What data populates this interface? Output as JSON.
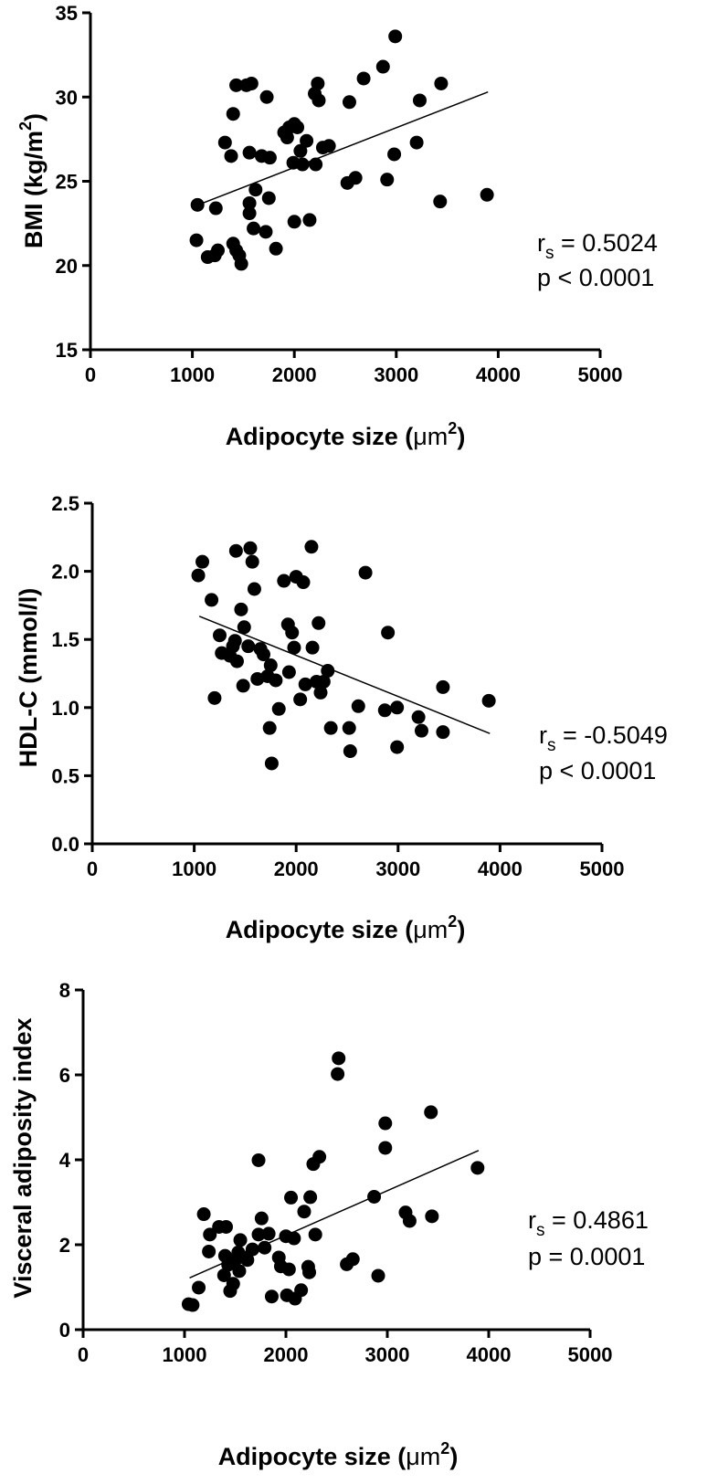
{
  "chart_data": [
    {
      "type": "scatter",
      "xlabel": "Adipocyte size (μm²)",
      "xlabel_main": "Adipocyte size (",
      "xlabel_unit": "μm",
      "xlabel_sup": "2",
      "xlabel_close": ")",
      "ylabel": "BMI (kg/m²)",
      "ylabel_main": "BMI (kg/m",
      "ylabel_sup": "2",
      "ylabel_close": ")",
      "xlim": [
        0,
        5000
      ],
      "ylim": [
        15,
        35
      ],
      "xticks": [
        0,
        1000,
        2000,
        3000,
        4000,
        5000
      ],
      "yticks": [
        15,
        20,
        25,
        30,
        35
      ],
      "xtick_labels": [
        "0",
        "1000",
        "2000",
        "3000",
        "4000",
        "5000"
      ],
      "ytick_labels": [
        "15",
        "20",
        "25",
        "30",
        "35"
      ],
      "stat_r_main": "r",
      "stat_r_sub": "s",
      "stat_r_value": " = 0.5024",
      "stat_p": "p < 0.0001",
      "fit_line": {
        "x": [
          1100,
          3900
        ],
        "y": [
          23.7,
          30.3
        ]
      },
      "points": [
        [
          1050,
          23.6
        ],
        [
          1040,
          21.5
        ],
        [
          1150,
          20.5
        ],
        [
          1220,
          20.6
        ],
        [
          1250,
          20.9
        ],
        [
          1230,
          23.4
        ],
        [
          1320,
          27.3
        ],
        [
          1380,
          26.5
        ],
        [
          1400,
          29.0
        ],
        [
          1400,
          21.3
        ],
        [
          1430,
          30.7
        ],
        [
          1430,
          20.9
        ],
        [
          1460,
          20.6
        ],
        [
          1480,
          20.1
        ],
        [
          1530,
          30.7
        ],
        [
          1560,
          26.7
        ],
        [
          1560,
          23.7
        ],
        [
          1560,
          23.1
        ],
        [
          1580,
          30.8
        ],
        [
          1600,
          22.2
        ],
        [
          1620,
          24.5
        ],
        [
          1680,
          26.5
        ],
        [
          1720,
          22.0
        ],
        [
          1730,
          30.0
        ],
        [
          1750,
          24.0
        ],
        [
          1760,
          26.4
        ],
        [
          1820,
          21.0
        ],
        [
          1900,
          27.9
        ],
        [
          1930,
          27.6
        ],
        [
          1950,
          28.2
        ],
        [
          1990,
          26.1
        ],
        [
          2000,
          22.6
        ],
        [
          2000,
          28.4
        ],
        [
          2030,
          28.2
        ],
        [
          2060,
          26.8
        ],
        [
          2080,
          26.0
        ],
        [
          2120,
          27.4
        ],
        [
          2150,
          22.7
        ],
        [
          2200,
          30.2
        ],
        [
          2210,
          26.0
        ],
        [
          2230,
          30.8
        ],
        [
          2240,
          29.8
        ],
        [
          2280,
          27.0
        ],
        [
          2340,
          27.1
        ],
        [
          2520,
          24.9
        ],
        [
          2540,
          29.7
        ],
        [
          2600,
          25.2
        ],
        [
          2680,
          31.1
        ],
        [
          2870,
          31.8
        ],
        [
          2910,
          25.1
        ],
        [
          2980,
          26.6
        ],
        [
          2990,
          33.6
        ],
        [
          3200,
          27.3
        ],
        [
          3230,
          29.8
        ],
        [
          3430,
          23.8
        ],
        [
          3440,
          30.8
        ],
        [
          3890,
          24.2
        ]
      ]
    },
    {
      "type": "scatter",
      "xlabel": "Adipocyte size (μm²)",
      "xlabel_main": "Adipocyte size (",
      "xlabel_unit": "μm",
      "xlabel_sup": "2",
      "xlabel_close": ")",
      "ylabel": "HDL-C (mmol/l)",
      "xlim": [
        0,
        5000
      ],
      "ylim": [
        0,
        2.5
      ],
      "xticks": [
        0,
        1000,
        2000,
        3000,
        4000,
        5000
      ],
      "yticks": [
        0,
        0.5,
        1.0,
        1.5,
        2.0,
        2.5
      ],
      "xtick_labels": [
        "0",
        "1000",
        "2000",
        "3000",
        "4000",
        "5000"
      ],
      "ytick_labels": [
        "0.0",
        "0.5",
        "1.0",
        "1.5",
        "2.0",
        "2.5"
      ],
      "stat_r_main": "r",
      "stat_r_sub": "s",
      "stat_r_value": " = -0.5049",
      "stat_p": "p < 0.0001",
      "fit_line": {
        "x": [
          1050,
          3900
        ],
        "y": [
          1.67,
          0.81
        ]
      },
      "points": [
        [
          1040,
          1.97
        ],
        [
          1080,
          2.07
        ],
        [
          1170,
          1.79
        ],
        [
          1200,
          1.07
        ],
        [
          1250,
          1.53
        ],
        [
          1270,
          1.4
        ],
        [
          1350,
          1.38
        ],
        [
          1380,
          1.45
        ],
        [
          1400,
          1.49
        ],
        [
          1410,
          2.15
        ],
        [
          1420,
          1.34
        ],
        [
          1460,
          1.72
        ],
        [
          1480,
          1.16
        ],
        [
          1490,
          1.59
        ],
        [
          1530,
          1.45
        ],
        [
          1550,
          2.17
        ],
        [
          1570,
          2.07
        ],
        [
          1590,
          1.87
        ],
        [
          1620,
          1.21
        ],
        [
          1650,
          1.43
        ],
        [
          1680,
          1.39
        ],
        [
          1720,
          1.23
        ],
        [
          1740,
          0.85
        ],
        [
          1750,
          1.31
        ],
        [
          1760,
          0.59
        ],
        [
          1800,
          1.2
        ],
        [
          1830,
          0.99
        ],
        [
          1880,
          1.93
        ],
        [
          1920,
          1.61
        ],
        [
          1930,
          1.26
        ],
        [
          1960,
          1.55
        ],
        [
          1980,
          1.44
        ],
        [
          2000,
          1.96
        ],
        [
          2040,
          1.06
        ],
        [
          2070,
          1.92
        ],
        [
          2090,
          1.17
        ],
        [
          2150,
          2.18
        ],
        [
          2160,
          1.44
        ],
        [
          2200,
          1.19
        ],
        [
          2220,
          1.62
        ],
        [
          2240,
          1.11
        ],
        [
          2270,
          1.19
        ],
        [
          2310,
          1.27
        ],
        [
          2340,
          0.85
        ],
        [
          2520,
          0.85
        ],
        [
          2530,
          0.68
        ],
        [
          2610,
          1.01
        ],
        [
          2680,
          1.99
        ],
        [
          2870,
          0.98
        ],
        [
          2900,
          1.55
        ],
        [
          2990,
          0.71
        ],
        [
          2990,
          1.0
        ],
        [
          3200,
          0.93
        ],
        [
          3230,
          0.83
        ],
        [
          3440,
          1.15
        ],
        [
          3440,
          0.82
        ],
        [
          3890,
          1.05
        ]
      ]
    },
    {
      "type": "scatter",
      "xlabel": "Adipocyte size (μm²)",
      "xlabel_main": "Adipocyte size (",
      "xlabel_unit": "μm",
      "xlabel_sup": "2",
      "xlabel_close": ")",
      "ylabel": "Visceral adiposity index",
      "xlim": [
        0,
        5000
      ],
      "ylim": [
        0,
        8
      ],
      "xticks": [
        0,
        1000,
        2000,
        3000,
        4000,
        5000
      ],
      "yticks": [
        0,
        2,
        4,
        6,
        8
      ],
      "xtick_labels": [
        "0",
        "1000",
        "2000",
        "3000",
        "4000",
        "5000"
      ],
      "ytick_labels": [
        "0",
        "2",
        "4",
        "6",
        "8"
      ],
      "stat_r_main": "r",
      "stat_r_sub": "s",
      "stat_r_value": " = 0.4861",
      "stat_p": "p = 0.0001",
      "fit_line": {
        "x": [
          1050,
          3900
        ],
        "y": [
          1.22,
          4.22
        ]
      },
      "points": [
        [
          1040,
          0.6
        ],
        [
          1080,
          0.58
        ],
        [
          1140,
          0.99
        ],
        [
          1190,
          2.72
        ],
        [
          1240,
          1.84
        ],
        [
          1250,
          2.24
        ],
        [
          1340,
          2.42
        ],
        [
          1390,
          1.28
        ],
        [
          1400,
          1.74
        ],
        [
          1410,
          2.42
        ],
        [
          1430,
          1.53
        ],
        [
          1450,
          0.91
        ],
        [
          1480,
          1.08
        ],
        [
          1500,
          1.64
        ],
        [
          1530,
          1.82
        ],
        [
          1540,
          1.38
        ],
        [
          1550,
          2.11
        ],
        [
          1590,
          1.7
        ],
        [
          1620,
          1.64
        ],
        [
          1670,
          1.89
        ],
        [
          1730,
          2.24
        ],
        [
          1730,
          3.99
        ],
        [
          1760,
          2.62
        ],
        [
          1790,
          1.93
        ],
        [
          1830,
          2.26
        ],
        [
          1860,
          0.78
        ],
        [
          1930,
          1.7
        ],
        [
          1950,
          1.49
        ],
        [
          2000,
          2.2
        ],
        [
          2010,
          0.81
        ],
        [
          2030,
          1.42
        ],
        [
          2050,
          3.11
        ],
        [
          2080,
          2.15
        ],
        [
          2090,
          0.73
        ],
        [
          2150,
          0.93
        ],
        [
          2180,
          2.78
        ],
        [
          2220,
          1.48
        ],
        [
          2230,
          1.35
        ],
        [
          2240,
          3.12
        ],
        [
          2270,
          3.9
        ],
        [
          2290,
          2.24
        ],
        [
          2330,
          4.07
        ],
        [
          2520,
          6.39
        ],
        [
          2510,
          6.02
        ],
        [
          2600,
          1.54
        ],
        [
          2660,
          1.66
        ],
        [
          2870,
          3.13
        ],
        [
          2910,
          1.27
        ],
        [
          2980,
          4.86
        ],
        [
          2980,
          4.28
        ],
        [
          3180,
          2.76
        ],
        [
          3220,
          2.56
        ],
        [
          3430,
          5.12
        ],
        [
          3440,
          2.67
        ],
        [
          3890,
          3.81
        ]
      ]
    }
  ]
}
